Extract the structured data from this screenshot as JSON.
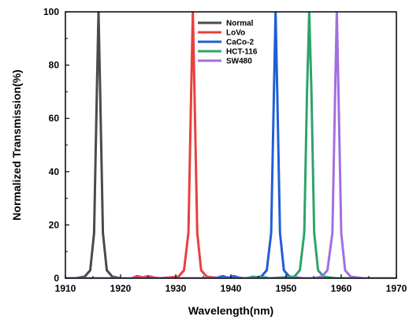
{
  "chart_data": {
    "type": "line",
    "title": "",
    "xlabel": "Wavelength(nm)",
    "ylabel": "Normalized Transmission(%)",
    "xlim": [
      1910,
      1970
    ],
    "ylim": [
      0,
      100
    ],
    "xticks": [
      1910,
      1920,
      1930,
      1940,
      1950,
      1960,
      1970
    ],
    "yticks": [
      0,
      20,
      40,
      60,
      80,
      100
    ],
    "legend_position": "top-center",
    "grid": false,
    "series": [
      {
        "name": "Normal",
        "color": "#4a4a4a",
        "x": [
          1910,
          1912,
          1913.5,
          1914.5,
          1915.2,
          1915.7,
          1916.0,
          1916.3,
          1916.8,
          1917.5,
          1918.5,
          1920,
          1930,
          1940,
          1950,
          1960,
          1970
        ],
        "y": [
          0,
          0.1,
          0.6,
          3,
          17,
          70,
          100,
          70,
          17,
          3,
          0.6,
          0,
          0,
          0,
          0,
          0,
          0
        ]
      },
      {
        "name": "LoVo",
        "color": "#e8403d",
        "x": [
          1910,
          1920,
          1922,
          1923,
          1924,
          1925,
          1926,
          1927,
          1930.5,
          1931.5,
          1932.3,
          1932.8,
          1933.1,
          1933.4,
          1933.9,
          1934.6,
          1935.6,
          1938,
          1950,
          1960,
          1970
        ],
        "y": [
          0,
          0,
          0,
          0.8,
          0.3,
          0.8,
          0.3,
          0,
          0.6,
          3,
          17,
          70,
          100,
          70,
          17,
          3,
          0.6,
          0,
          0,
          0,
          0
        ]
      },
      {
        "name": "CaCo-2",
        "color": "#1f5fd6",
        "x": [
          1910,
          1930,
          1936,
          1937.5,
          1938.5,
          1939.5,
          1940.5,
          1941.5,
          1942.5,
          1945.5,
          1946.5,
          1947.3,
          1947.8,
          1948.1,
          1948.4,
          1948.9,
          1949.6,
          1950.6,
          1953,
          1960,
          1970
        ],
        "y": [
          0,
          0,
          0,
          0.2,
          0.8,
          0.2,
          0.8,
          0.2,
          0,
          0.6,
          3,
          17,
          70,
          100,
          70,
          17,
          3,
          0.6,
          0,
          0,
          0
        ]
      },
      {
        "name": "HCT-116",
        "color": "#2ea36a",
        "x": [
          1910,
          1940,
          1943,
          1944,
          1945,
          1946,
          1947,
          1951.5,
          1952.5,
          1953.3,
          1953.8,
          1954.2,
          1954.6,
          1955.1,
          1955.8,
          1956.8,
          1959,
          1970
        ],
        "y": [
          0,
          0,
          0,
          0.6,
          0.2,
          0.4,
          0,
          0.6,
          3,
          17,
          70,
          100,
          70,
          17,
          3,
          0.6,
          0,
          0
        ]
      },
      {
        "name": "SW480",
        "color": "#a36ee0",
        "x": [
          1910,
          1950,
          1955,
          1956.5,
          1957.5,
          1958.4,
          1958.9,
          1959.2,
          1959.5,
          1960.0,
          1960.7,
          1961.7,
          1964,
          1970
        ],
        "y": [
          0,
          0,
          0,
          0.6,
          3,
          17,
          70,
          100,
          70,
          17,
          3,
          0.6,
          0,
          0
        ]
      }
    ]
  }
}
